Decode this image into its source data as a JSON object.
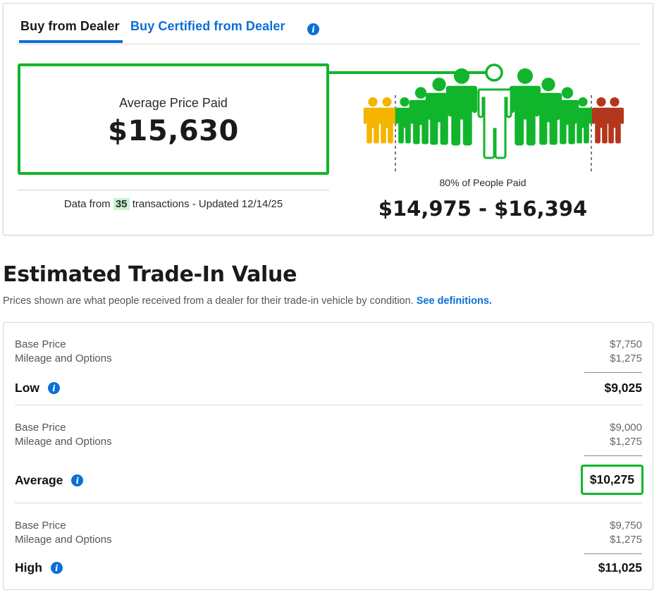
{
  "tabs": {
    "dealer": "Buy from Dealer",
    "certified": "Buy Certified from Dealer",
    "info_icon": "i"
  },
  "average": {
    "label": "Average Price Paid",
    "value": "$15,630"
  },
  "data_note": {
    "prefix": "Data from",
    "count": "35",
    "suffix": "transactions - Updated 12/14/25"
  },
  "distribution": {
    "label": "80% of People Paid",
    "range": "$14,975 - $16,394",
    "colors": {
      "low": "#f5b400",
      "mid": "#11b52c",
      "high": "#b5371b"
    }
  },
  "trade_in": {
    "title": "Estimated Trade-In Value",
    "description": "Prices shown are what people received from a dealer for their trade-in vehicle by condition.",
    "definitions_link": "See definitions.",
    "tiers": [
      {
        "base_label": "Base Price",
        "base_value": "$7,750",
        "mileage_label": "Mileage and Options",
        "mileage_value": "$1,275",
        "name": "Low",
        "total": "$9,025"
      },
      {
        "base_label": "Base Price",
        "base_value": "$9,000",
        "mileage_label": "Mileage and Options",
        "mileage_value": "$1,275",
        "name": "Average",
        "total": "$10,275"
      },
      {
        "base_label": "Base Price",
        "base_value": "$9,750",
        "mileage_label": "Mileage and Options",
        "mileage_value": "$1,275",
        "name": "High",
        "total": "$11,025"
      }
    ]
  },
  "accent_colors": {
    "blue": "#0a6fd6",
    "green": "#11b52c"
  }
}
